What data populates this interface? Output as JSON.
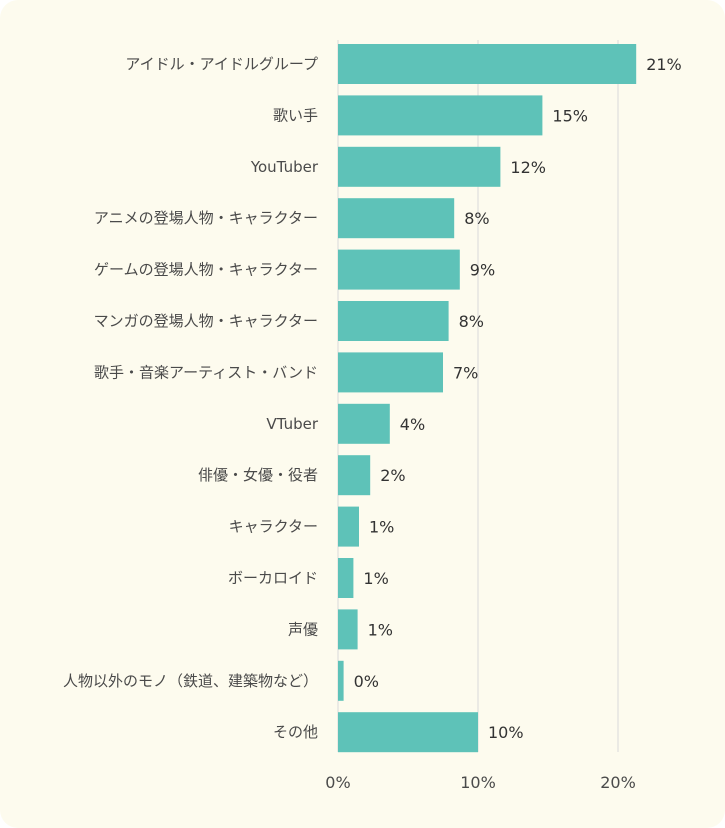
{
  "chart_data": {
    "type": "bar",
    "orientation": "horizontal",
    "categories": [
      "アイドル・アイドルグループ",
      "歌い手",
      "YouTuber",
      "アニメの登場人物・キャラクター",
      "ゲームの登場人物・キャラクター",
      "マンガの登場人物・キャラクター",
      "歌手・音楽アーティスト・バンド",
      "VTuber",
      "俳優・女優・役者",
      "キャラクター",
      "ボーカロイド",
      "声優",
      "人物以外のモノ（鉄道、建築物など）",
      "その他"
    ],
    "values": [
      21.3,
      14.6,
      11.6,
      8.3,
      8.7,
      7.9,
      7.5,
      3.7,
      2.3,
      1.5,
      1.1,
      1.4,
      0.4,
      10.0
    ],
    "data_labels": [
      "21%",
      "15%",
      "12%",
      "8%",
      "9%",
      "8%",
      "7%",
      "4%",
      "2%",
      "1%",
      "1%",
      "1%",
      "0%",
      "10%"
    ],
    "xlim": [
      0,
      20
    ],
    "xticks": [
      0,
      10,
      20
    ],
    "xtick_labels": [
      "0%",
      "10%",
      "20%"
    ],
    "grid": true,
    "bar_color": "#5ec2b8",
    "grid_color": "#d9d9d9",
    "background_color": "#fdfbee"
  }
}
